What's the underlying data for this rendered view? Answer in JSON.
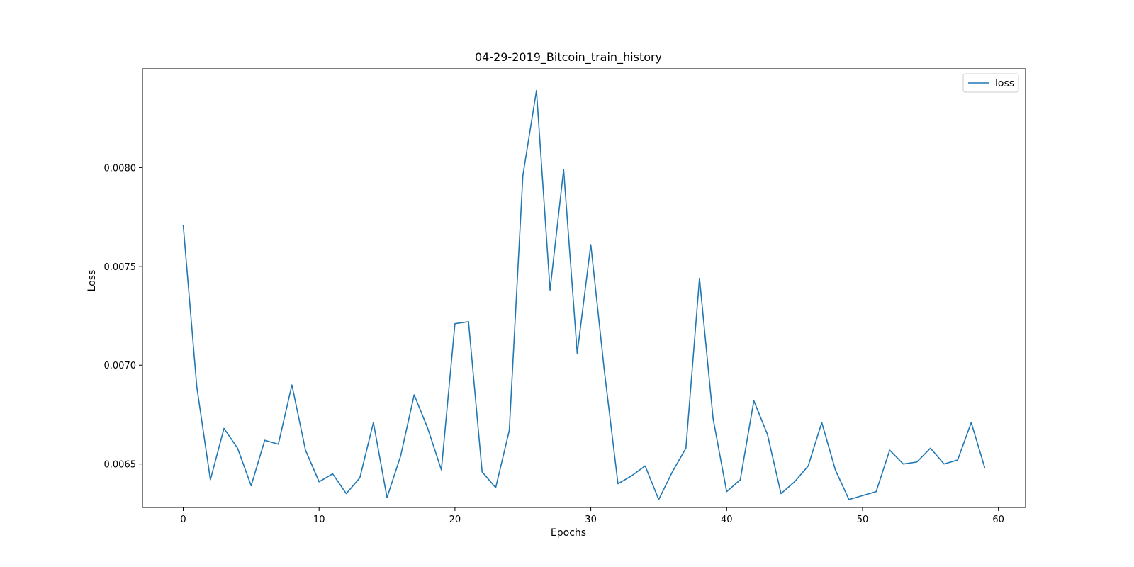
{
  "chart_data": {
    "type": "line",
    "title": "04-29-2019_Bitcoin_train_history",
    "xlabel": "Epochs",
    "ylabel": "Loss",
    "xlim": [
      -3,
      62
    ],
    "ylim": [
      0.00628,
      0.0085
    ],
    "xticks": [
      0,
      10,
      20,
      30,
      40,
      50,
      60
    ],
    "xtick_labels": [
      "0",
      "10",
      "20",
      "30",
      "40",
      "50",
      "60"
    ],
    "yticks": [
      0.0065,
      0.007,
      0.0075,
      0.008
    ],
    "ytick_labels": [
      "0.0065",
      "0.0070",
      "0.0075",
      "0.0080"
    ],
    "grid": false,
    "legend_position": "top-right",
    "series": [
      {
        "name": "loss",
        "color": "#1f77b4",
        "x": [
          0,
          1,
          2,
          3,
          4,
          5,
          6,
          7,
          8,
          9,
          10,
          11,
          12,
          13,
          14,
          15,
          16,
          17,
          18,
          19,
          20,
          21,
          22,
          23,
          24,
          25,
          26,
          27,
          28,
          29,
          30,
          31,
          32,
          33,
          34,
          35,
          36,
          37,
          38,
          39,
          40,
          41,
          42,
          43,
          44,
          45,
          46,
          47,
          48,
          49,
          50,
          51,
          52,
          53,
          54,
          55,
          56,
          57,
          58,
          59
        ],
        "y": [
          0.00771,
          0.00689,
          0.00642,
          0.00668,
          0.00658,
          0.00639,
          0.00662,
          0.0066,
          0.0069,
          0.00657,
          0.00641,
          0.00645,
          0.00635,
          0.00643,
          0.00671,
          0.00633,
          0.00654,
          0.00685,
          0.00668,
          0.00647,
          0.00721,
          0.00722,
          0.00646,
          0.00638,
          0.00667,
          0.00796,
          0.00839,
          0.00738,
          0.00799,
          0.00706,
          0.00761,
          0.00697,
          0.0064,
          0.00644,
          0.00649,
          0.00632,
          0.00646,
          0.00658,
          0.00744,
          0.00673,
          0.00636,
          0.00642,
          0.00682,
          0.00665,
          0.00635,
          0.00641,
          0.00649,
          0.00671,
          0.00647,
          0.00632,
          0.00634,
          0.00636,
          0.00657,
          0.0065,
          0.00651,
          0.00658,
          0.0065,
          0.00652,
          0.00671,
          0.00648
        ]
      }
    ]
  }
}
